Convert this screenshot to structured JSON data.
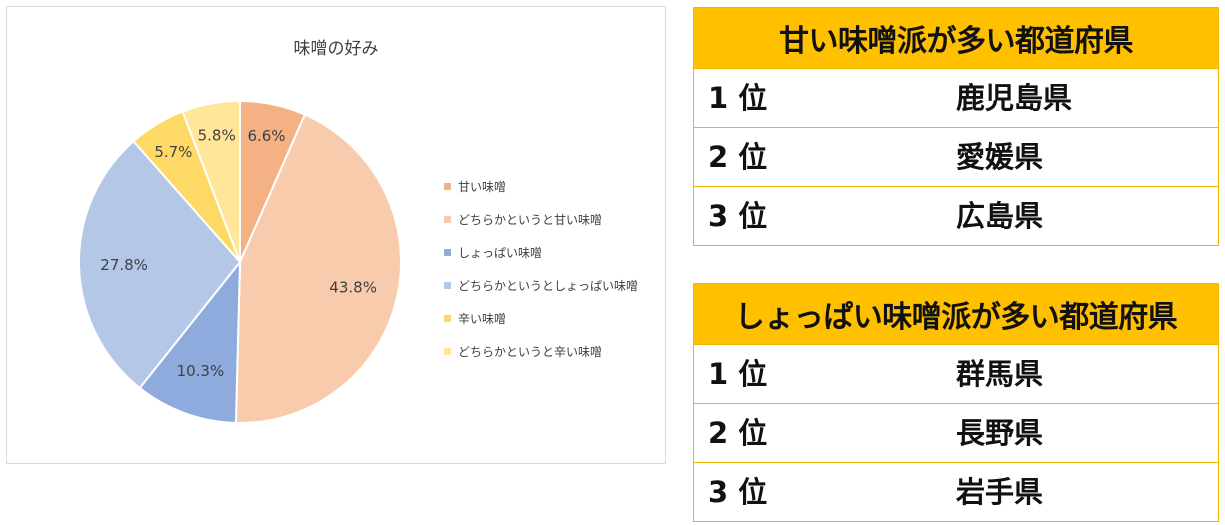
{
  "chart_data": {
    "type": "pie",
    "title": "味噌の好み",
    "legend_position": "right",
    "slices": [
      {
        "label": "甘い味噌",
        "value": 6.6,
        "display": "6.6%",
        "color": "#f4b183"
      },
      {
        "label": "どちらかというと甘い味噌",
        "value": 43.8,
        "display": "43.8%",
        "color": "#f8cbad"
      },
      {
        "label": "しょっぱい味噌",
        "value": 10.3,
        "display": "10.3%",
        "color": "#8faadc"
      },
      {
        "label": "どちらかというとしょっぱい味噌",
        "value": 27.8,
        "display": "27.8%",
        "color": "#b4c7e7"
      },
      {
        "label": "辛い味噌",
        "value": 5.7,
        "display": "5.7%",
        "color": "#ffd966"
      },
      {
        "label": "どちらかというと辛い味噌",
        "value": 5.8,
        "display": "5.8%",
        "color": "#ffe699"
      }
    ]
  },
  "tables": {
    "sweet": {
      "title": "甘い味噌派が多い都道府県",
      "rows": [
        {
          "rank": "1 位",
          "name": "鹿児島県"
        },
        {
          "rank": "2 位",
          "name": "愛媛県"
        },
        {
          "rank": "3 位",
          "name": "広島県"
        }
      ]
    },
    "salty": {
      "title": "しょっぱい味噌派が多い都道府県",
      "rows": [
        {
          "rank": "1 位",
          "name": "群馬県"
        },
        {
          "rank": "2 位",
          "name": "長野県"
        },
        {
          "rank": "3 位",
          "name": "岩手県"
        }
      ]
    }
  },
  "colors": {
    "header_bg": "#ffc000",
    "border": "#f2b700"
  }
}
